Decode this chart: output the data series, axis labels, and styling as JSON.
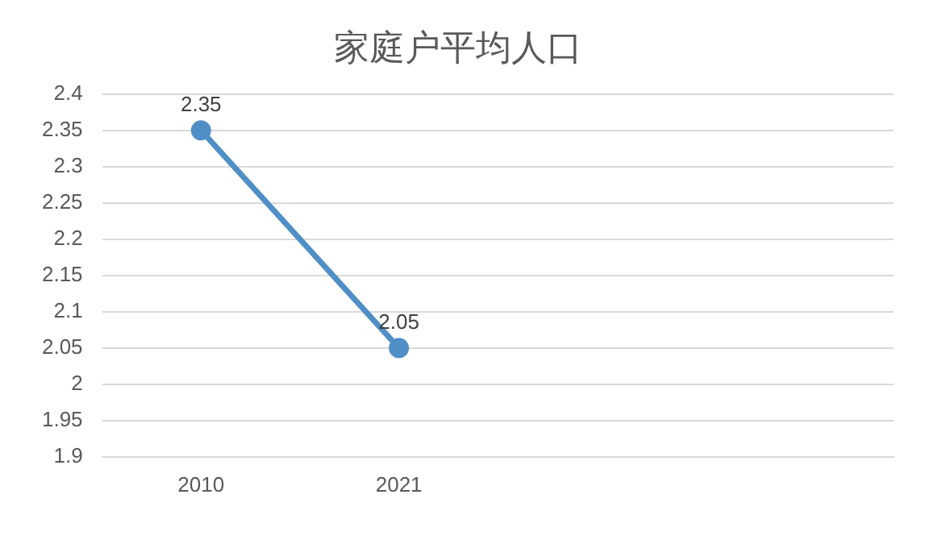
{
  "chart_data": {
    "type": "line",
    "title": "家庭户平均人口",
    "categories": [
      "2010",
      "2021",
      null,
      null
    ],
    "series": [
      {
        "color": "#4f8fc6",
        "values": [
          2.35,
          2.05,
          null,
          null
        ]
      }
    ],
    "ylim": [
      1.9,
      2.4
    ],
    "yticks": [
      1.9,
      1.95,
      2,
      2.05,
      2.1,
      2.15,
      2.2,
      2.25,
      2.3,
      2.35,
      2.4
    ],
    "grid": "y",
    "legend": false,
    "marker": "circle",
    "line_style": "solid",
    "data_labels": true
  }
}
